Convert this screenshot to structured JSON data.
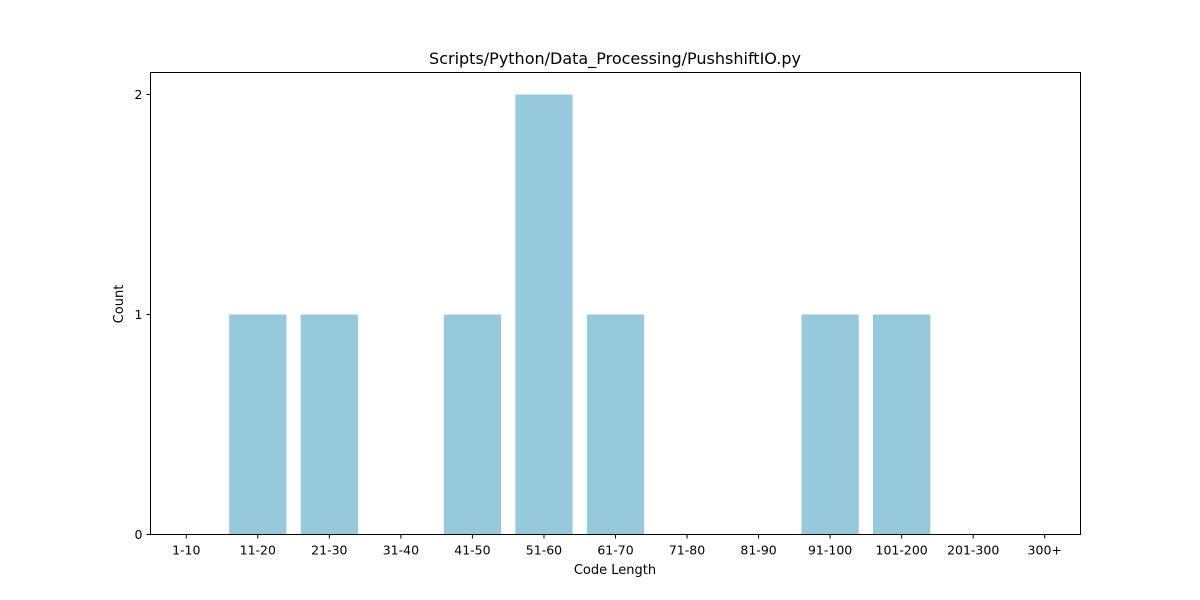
{
  "chart_data": {
    "type": "bar",
    "title": "Scripts/Python/Data_Processing/PushshiftIO.py",
    "xlabel": "Code Length",
    "ylabel": "Count",
    "categories": [
      "1-10",
      "11-20",
      "21-30",
      "31-40",
      "41-50",
      "51-60",
      "61-70",
      "71-80",
      "81-90",
      "91-100",
      "101-200",
      "201-300",
      "300+"
    ],
    "values": [
      0,
      1,
      1,
      0,
      1,
      2,
      1,
      0,
      0,
      1,
      1,
      0,
      0
    ],
    "yticks": [
      0,
      1,
      2
    ],
    "ylim": [
      0,
      2.1
    ],
    "bar_color": "#96c9dc",
    "grid": false,
    "legend": "none"
  }
}
